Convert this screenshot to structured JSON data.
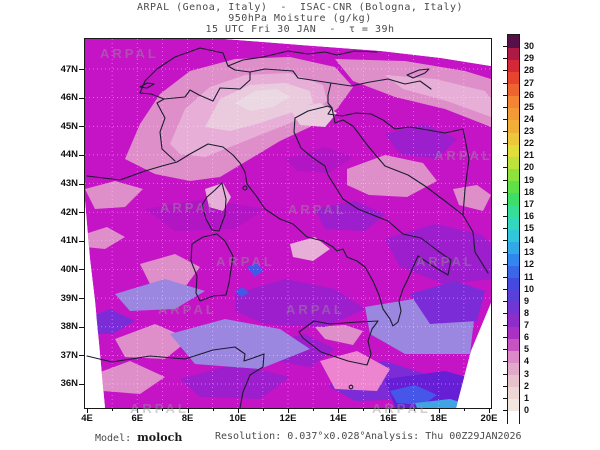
{
  "title": {
    "line1": "ARPAL (Genoa, Italy)  -  ISAC-CNR (Bologna, Italy)",
    "line2": "950hPa Moisture (g/kg)",
    "line3": "15 UTC Fri 30 JAN  -  τ = 39h"
  },
  "footer": {
    "model_label": "Model: ",
    "model_value": "moloch",
    "resolution_label": "Resolution: ",
    "resolution_value": "0.037°x0.028°",
    "analysis_label": "Analysis: ",
    "analysis_value": "Thu 00Z29JAN2026"
  },
  "watermark": "ARPAL",
  "axes": {
    "lat_labels": [
      "47N",
      "46N",
      "45N",
      "44N",
      "43N",
      "42N",
      "41N",
      "40N",
      "39N",
      "38N",
      "37N",
      "36N"
    ],
    "lon_labels": [
      "4E",
      "6E",
      "8E",
      "10E",
      "12E",
      "14E",
      "16E",
      "18E",
      "20E"
    ]
  },
  "colorbar": {
    "labels": [
      "0",
      "1",
      "2",
      "3",
      "4",
      "5",
      "6",
      "7",
      "8",
      "9",
      "10",
      "11",
      "12",
      "13",
      "14",
      "15",
      "16",
      "17",
      "18",
      "19",
      "20",
      "21",
      "22",
      "23",
      "24",
      "25",
      "26",
      "27",
      "28",
      "29",
      "30"
    ],
    "segment_colors_bottom_to_top": [
      "#ffffff",
      "#f1e6e0",
      "#ecd7d5",
      "#e6c2cd",
      "#e0a9ca",
      "#dc8ac7",
      "#c654c0",
      "#ab30c4",
      "#8d2ecb",
      "#7136d3",
      "#5a40da",
      "#4449e1",
      "#3a67e8",
      "#3187ee",
      "#31a9e9",
      "#31c6da",
      "#32d8bd",
      "#36dd96",
      "#3edd67",
      "#5fdf48",
      "#8ee23c",
      "#bee23c",
      "#e3dd3c",
      "#eec63c",
      "#f1ae39",
      "#f29b36",
      "#f28434",
      "#ee6431",
      "#e6442f",
      "#d42836",
      "#ad1a46",
      "#571047"
    ]
  },
  "map": {
    "palette": {
      "base": "#c414c6",
      "magentaDeep": "#b216c4",
      "pink": "#de8fc9",
      "pinkLight": "#e7afd7",
      "pinkPale": "#eacbde",
      "pinkPalest": "#ead9e2",
      "pinkHot": "#ec84cf",
      "purple": "#9c1ecc",
      "lavender": "#9b87df",
      "violet": "#7c2cd6",
      "violetDeep": "#671fd6",
      "blue": "#4556e9",
      "cyanBlue": "#3fa3e4",
      "coast": "#1c1c30",
      "graticule": "#ffffff"
    }
  },
  "chart_data": {
    "type": "heatmap",
    "title": "950hPa Moisture (g/kg)",
    "source": "ARPAL (Genoa, Italy) - ISAC-CNR (Bologna, Italy)",
    "valid_time": "15 UTC Fri 30 JAN",
    "lead_time": "τ = 39h",
    "units": "g/kg",
    "colorbar_range": [
      0,
      30
    ],
    "colorbar_tick_step": 1,
    "x_axis": {
      "label_ticks": [
        "4E",
        "6E",
        "8E",
        "10E",
        "12E",
        "14E",
        "16E",
        "18E",
        "20E"
      ],
      "range_deg_east": [
        4,
        20
      ]
    },
    "y_axis": {
      "label_ticks": [
        "47N",
        "46N",
        "45N",
        "44N",
        "43N",
        "42N",
        "41N",
        "40N",
        "39N",
        "38N",
        "37N",
        "36N"
      ],
      "range_deg_north": [
        36,
        47
      ]
    },
    "model": "moloch",
    "resolution": "0.037°x0.028°",
    "analysis": "Thu 00Z29JAN2026",
    "legend_position": "right",
    "grid": "1-degree dotted graticule",
    "field_summary": "Moisture mostly 3-11 g/kg: magenta (~5-6) over NW and central Mediterranean, pale pink minima (~2-3) over the Alps/Po valley, purple-to-lavender (~7-9) over the southern seas, blue patches (~10-12) at the far south"
  }
}
